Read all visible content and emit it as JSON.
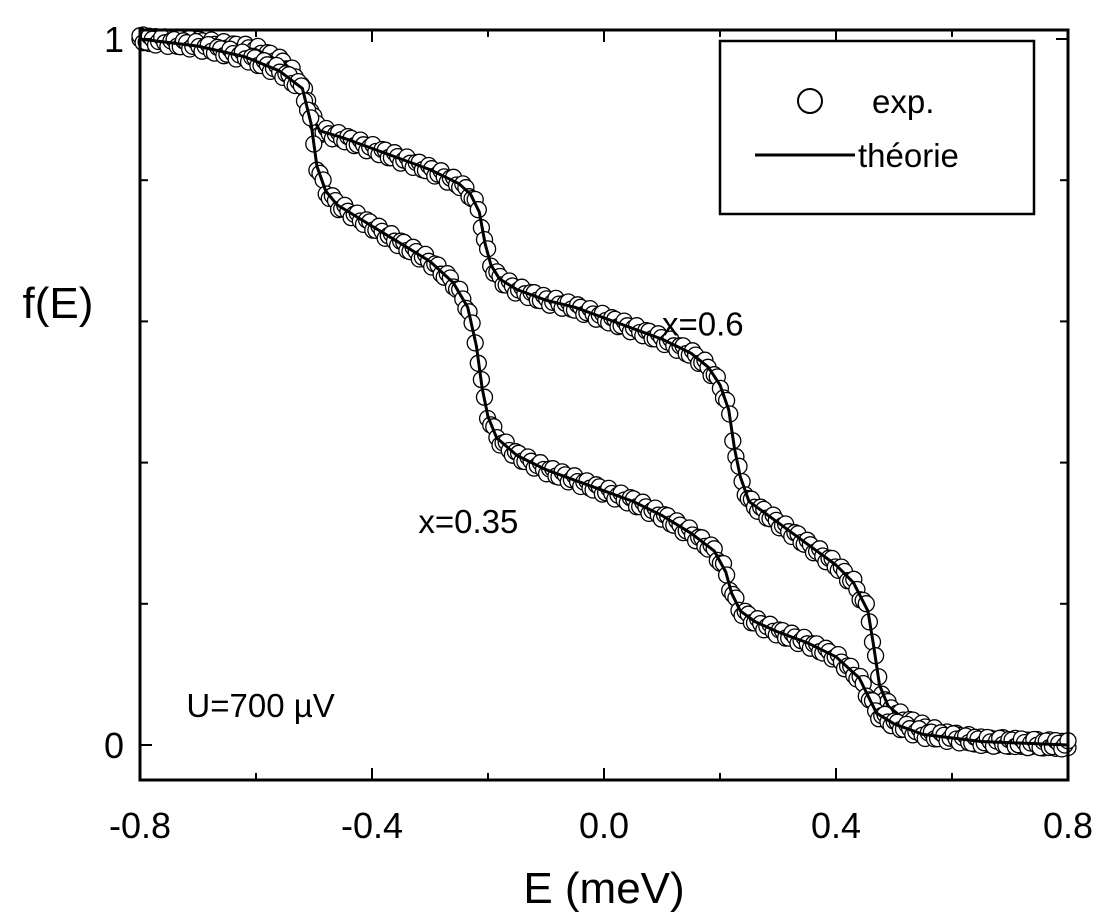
{
  "chart_data": {
    "type": "scatter",
    "title": "",
    "xlabel": "E (meV)",
    "ylabel": "f(E)",
    "xlim": [
      -0.8,
      0.8
    ],
    "ylim": [
      -0.05,
      1.02
    ],
    "x_ticks": [
      {
        "value": -0.8,
        "label": "-0.8"
      },
      {
        "value": -0.4,
        "label": "-0.4"
      },
      {
        "value": 0.0,
        "label": "0.0"
      },
      {
        "value": 0.4,
        "label": "0.4"
      },
      {
        "value": 0.8,
        "label": "0.8"
      }
    ],
    "y_ticks": [
      {
        "value": 0,
        "label": "0"
      },
      {
        "value": 1,
        "label": "1"
      }
    ],
    "grid": false,
    "legend": {
      "position": "top-right",
      "entries": [
        {
          "label": "exp.",
          "marker": "circle"
        },
        {
          "label": "théorie",
          "marker": "line"
        }
      ]
    },
    "annotations": [
      {
        "text": "x=0.6",
        "x": 0.1,
        "y": 0.58
      },
      {
        "text": "x=0.35",
        "x": -0.32,
        "y": 0.3
      },
      {
        "text": "U=700 µV",
        "x": -0.72,
        "y": 0.04
      }
    ],
    "series": [
      {
        "label": "x=0.6",
        "curve": [
          [
            -0.8,
            1.0
          ],
          [
            -0.7,
            0.995
          ],
          [
            -0.6,
            0.985
          ],
          [
            -0.55,
            0.965
          ],
          [
            -0.53,
            0.945
          ],
          [
            -0.51,
            0.915
          ],
          [
            -0.5,
            0.885
          ],
          [
            -0.49,
            0.87
          ],
          [
            -0.45,
            0.86
          ],
          [
            -0.4,
            0.845
          ],
          [
            -0.35,
            0.83
          ],
          [
            -0.3,
            0.815
          ],
          [
            -0.25,
            0.795
          ],
          [
            -0.23,
            0.78
          ],
          [
            -0.215,
            0.755
          ],
          [
            -0.205,
            0.71
          ],
          [
            -0.195,
            0.68
          ],
          [
            -0.18,
            0.66
          ],
          [
            -0.15,
            0.645
          ],
          [
            -0.1,
            0.63
          ],
          [
            -0.05,
            0.62
          ],
          [
            0.0,
            0.605
          ],
          [
            0.05,
            0.59
          ],
          [
            0.1,
            0.575
          ],
          [
            0.15,
            0.555
          ],
          [
            0.18,
            0.535
          ],
          [
            0.2,
            0.51
          ],
          [
            0.215,
            0.475
          ],
          [
            0.225,
            0.42
          ],
          [
            0.235,
            0.38
          ],
          [
            0.25,
            0.345
          ],
          [
            0.3,
            0.315
          ],
          [
            0.35,
            0.285
          ],
          [
            0.4,
            0.255
          ],
          [
            0.43,
            0.23
          ],
          [
            0.455,
            0.19
          ],
          [
            0.465,
            0.14
          ],
          [
            0.475,
            0.085
          ],
          [
            0.49,
            0.055
          ],
          [
            0.52,
            0.035
          ],
          [
            0.58,
            0.015
          ],
          [
            0.65,
            0.006
          ],
          [
            0.8,
            0.0
          ]
        ]
      },
      {
        "label": "x=0.35",
        "curve": [
          [
            -0.8,
            1.0
          ],
          [
            -0.7,
            0.99
          ],
          [
            -0.62,
            0.975
          ],
          [
            -0.56,
            0.955
          ],
          [
            -0.52,
            0.93
          ],
          [
            -0.505,
            0.88
          ],
          [
            -0.495,
            0.82
          ],
          [
            -0.48,
            0.785
          ],
          [
            -0.46,
            0.765
          ],
          [
            -0.4,
            0.735
          ],
          [
            -0.35,
            0.71
          ],
          [
            -0.3,
            0.685
          ],
          [
            -0.26,
            0.655
          ],
          [
            -0.235,
            0.62
          ],
          [
            -0.22,
            0.565
          ],
          [
            -0.21,
            0.505
          ],
          [
            -0.2,
            0.465
          ],
          [
            -0.185,
            0.435
          ],
          [
            -0.15,
            0.41
          ],
          [
            -0.1,
            0.39
          ],
          [
            -0.05,
            0.375
          ],
          [
            0.0,
            0.36
          ],
          [
            0.05,
            0.345
          ],
          [
            0.1,
            0.325
          ],
          [
            0.15,
            0.3
          ],
          [
            0.19,
            0.275
          ],
          [
            0.21,
            0.245
          ],
          [
            0.22,
            0.215
          ],
          [
            0.235,
            0.19
          ],
          [
            0.26,
            0.175
          ],
          [
            0.3,
            0.16
          ],
          [
            0.35,
            0.145
          ],
          [
            0.4,
            0.125
          ],
          [
            0.44,
            0.095
          ],
          [
            0.455,
            0.07
          ],
          [
            0.47,
            0.045
          ],
          [
            0.5,
            0.03
          ],
          [
            0.55,
            0.015
          ],
          [
            0.65,
            0.005
          ],
          [
            0.8,
            0.0
          ]
        ]
      }
    ]
  }
}
